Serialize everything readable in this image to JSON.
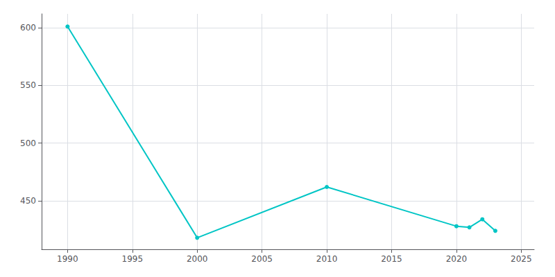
{
  "chart_data": {
    "type": "line",
    "x": [
      1990,
      2000,
      2010,
      2020,
      2021,
      2022,
      2023
    ],
    "values": [
      601,
      418,
      462,
      428,
      427,
      434,
      424
    ],
    "color": "#00C5C5",
    "marker": "circle",
    "xlim": [
      1988,
      2026
    ],
    "ylim": [
      408,
      612
    ],
    "xticks": [
      1990,
      1995,
      2000,
      2005,
      2010,
      2015,
      2020,
      2025
    ],
    "yticks": [
      450,
      500,
      550,
      600
    ],
    "grid": true
  }
}
